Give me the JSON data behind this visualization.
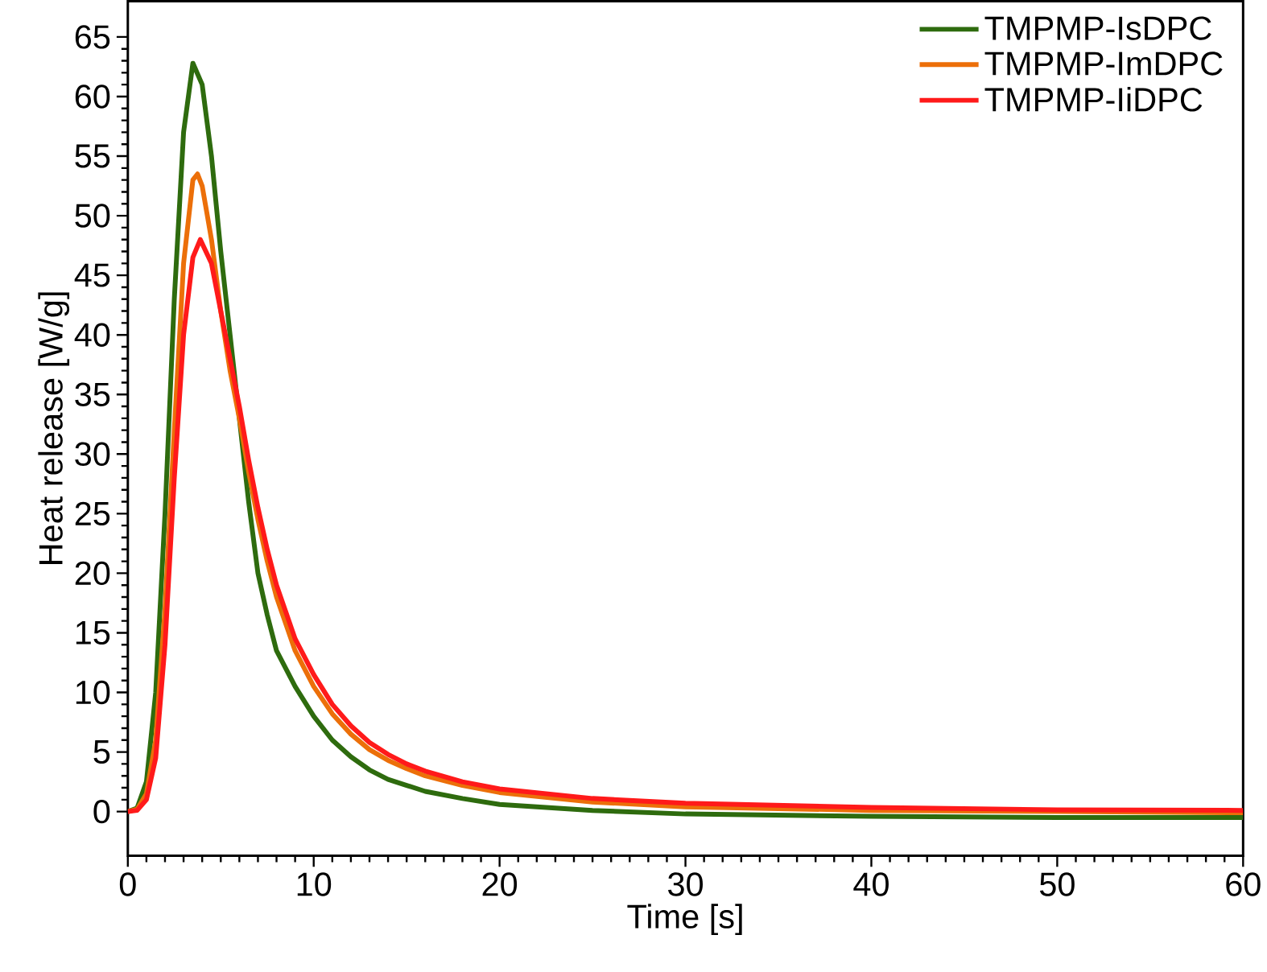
{
  "chart_data": {
    "type": "line",
    "xlabel": "Time [s]",
    "ylabel": "Heat release [W/g]",
    "xlim": [
      0,
      60
    ],
    "ylim": [
      -3.7,
      68
    ],
    "xticks": [
      0,
      10,
      20,
      30,
      40,
      50,
      60
    ],
    "yticks": [
      0,
      5,
      10,
      15,
      20,
      25,
      30,
      35,
      40,
      45,
      50,
      55,
      60,
      65
    ],
    "grid": false,
    "legend": "top right",
    "marker": "none",
    "line_style": "solid",
    "series": [
      {
        "name": "TMPMP-IsDPC",
        "color": "#2e6b0e",
        "x": [
          0,
          0.5,
          1,
          1.5,
          2,
          2.5,
          3,
          3.5,
          4,
          4.5,
          5,
          5.5,
          6,
          6.5,
          7,
          7.5,
          8,
          9,
          10,
          11,
          12,
          13,
          14,
          15,
          16,
          18,
          20,
          25,
          30,
          40,
          50,
          60
        ],
        "values": [
          0,
          0.3,
          2.5,
          10,
          25,
          43,
          57,
          62.8,
          61,
          55,
          47,
          40,
          33,
          26,
          20,
          16.5,
          13.5,
          10.5,
          8,
          6,
          4.6,
          3.5,
          2.7,
          2.2,
          1.7,
          1.1,
          0.6,
          0.1,
          -0.2,
          -0.4,
          -0.5,
          -0.5
        ]
      },
      {
        "name": "TMPMP-ImDPC",
        "color": "#ec6f09",
        "x": [
          0,
          0.5,
          1,
          1.5,
          2,
          2.5,
          3,
          3.5,
          3.75,
          4,
          4.5,
          5,
          5.5,
          6,
          6.5,
          7,
          7.5,
          8,
          9,
          10,
          11,
          12,
          13,
          14,
          15,
          16,
          18,
          20,
          25,
          30,
          40,
          50,
          60
        ],
        "values": [
          0,
          0.2,
          1.5,
          6,
          17,
          32,
          46,
          53,
          53.5,
          52.5,
          48,
          42,
          37,
          33,
          28.5,
          24.5,
          21,
          18,
          13.5,
          10.5,
          8.2,
          6.5,
          5.2,
          4.3,
          3.6,
          3,
          2.2,
          1.6,
          0.8,
          0.4,
          0.1,
          0,
          -0.1
        ]
      },
      {
        "name": "TMPMP-IiDPC",
        "color": "#ff1a1a",
        "x": [
          0,
          0.5,
          1,
          1.5,
          2,
          2.5,
          3,
          3.5,
          3.9,
          4.5,
          5,
          5.5,
          6,
          6.5,
          7,
          7.5,
          8,
          9,
          10,
          11,
          12,
          13,
          14,
          15,
          16,
          18,
          20,
          25,
          30,
          40,
          50,
          60
        ],
        "values": [
          0,
          0.1,
          1,
          4.5,
          14,
          28,
          40,
          46.5,
          48,
          46,
          42,
          38,
          34,
          29.5,
          25.5,
          22,
          19,
          14.5,
          11.5,
          9,
          7.2,
          5.8,
          4.8,
          4,
          3.4,
          2.5,
          1.9,
          1.1,
          0.7,
          0.35,
          0.15,
          0.1
        ]
      }
    ]
  }
}
